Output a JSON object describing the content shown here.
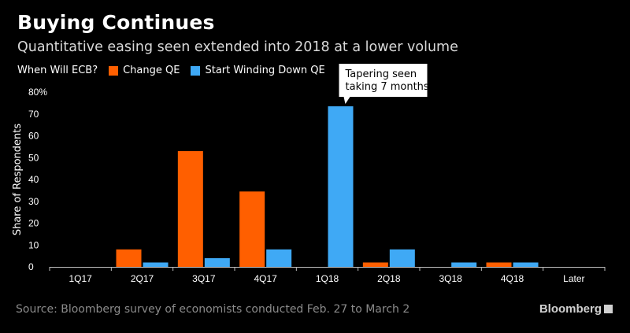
{
  "header": {
    "title": "Buying Continues",
    "subtitle": "Quantitative easing seen extended into 2018 at a lower volume"
  },
  "legend": {
    "label": "When Will ECB?",
    "items": [
      {
        "name": "Change QE",
        "color": "#ff5f00"
      },
      {
        "name": "Start Winding Down QE",
        "color": "#3fa9f5"
      }
    ]
  },
  "chart_data": {
    "type": "bar",
    "title": "Buying Continues",
    "subtitle": "Quantitative easing seen extended into 2018 at a lower volume",
    "xlabel": "",
    "ylabel": "Share of Respondents",
    "ylim": [
      0,
      80
    ],
    "yticks": [
      "0",
      "10",
      "20",
      "30",
      "40",
      "50",
      "60",
      "70",
      "80%"
    ],
    "categories": [
      "1Q17",
      "2Q17",
      "3Q17",
      "4Q17",
      "1Q18",
      "2Q18",
      "3Q18",
      "4Q18",
      "Later"
    ],
    "series": [
      {
        "name": "Change QE",
        "color": "#ff5f00",
        "values": [
          0,
          8,
          53,
          34.5,
          0,
          2,
          0,
          2,
          0
        ]
      },
      {
        "name": "Start Winding Down QE",
        "color": "#3fa9f5",
        "values": [
          0,
          2,
          4,
          8,
          73.5,
          8,
          2,
          2,
          0
        ]
      }
    ],
    "annotations": [
      {
        "text_lines": [
          "Tapering seen",
          "taking 7 months"
        ],
        "category": "1Q18",
        "series": "Start Winding Down QE"
      }
    ],
    "grid": false,
    "legend_position": "top-left"
  },
  "footer": {
    "source": "Source: Bloomberg survey of economists conducted Feb. 27 to March 2",
    "brand": "Bloomberg"
  }
}
